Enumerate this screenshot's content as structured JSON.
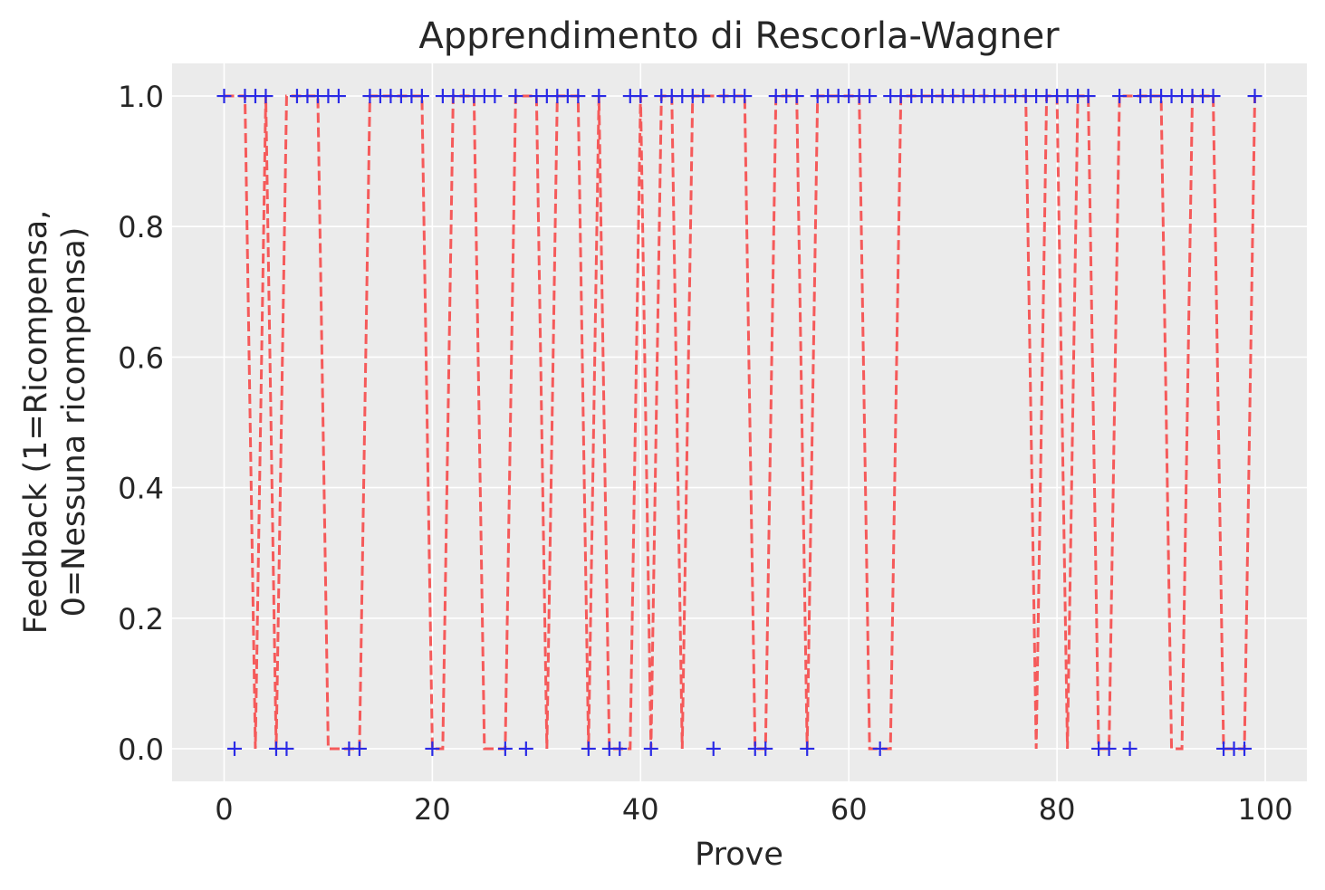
{
  "chart_data": {
    "type": "line",
    "title": "Apprendimento di Rescorla-Wagner",
    "xlabel": "Prove",
    "ylabel_lines": [
      "Feedback (1=Ricompensa,",
      "0=Nessuna ricompensa)"
    ],
    "xlim": [
      -5,
      104
    ],
    "ylim": [
      -0.05,
      1.05
    ],
    "x_ticks": [
      0,
      20,
      40,
      60,
      80,
      100
    ],
    "y_ticks": [
      0.0,
      0.2,
      0.4,
      0.6,
      0.8,
      1.0
    ],
    "x_tick_labels": [
      "0",
      "20",
      "40",
      "60",
      "80",
      "100"
    ],
    "y_tick_labels": [
      "0.0",
      "0.2",
      "0.4",
      "0.6",
      "0.8",
      "1.0"
    ],
    "grid": true,
    "colors": {
      "background": "#ebebeb",
      "grid": "#ffffff",
      "line": "#f55a5a",
      "marker": "#2a2ae6"
    },
    "series": [
      {
        "style": "dashed line",
        "x": [
          0,
          1,
          2,
          3,
          4,
          5,
          6,
          7,
          8,
          9,
          10,
          11,
          12,
          13,
          14,
          15,
          16,
          17,
          18,
          19,
          20,
          21,
          22,
          23,
          24,
          25,
          26,
          27,
          28,
          29,
          30,
          31,
          32,
          33,
          34,
          35,
          36,
          37,
          38,
          39,
          40,
          41,
          42,
          43,
          44,
          45,
          46,
          47,
          48,
          49,
          50,
          51,
          52,
          53,
          54,
          55,
          56,
          57,
          58,
          59,
          60,
          61,
          62,
          63,
          64,
          65,
          66,
          67,
          68,
          69,
          70,
          71,
          72,
          73,
          74,
          75,
          76,
          77,
          78,
          79,
          80,
          81,
          82,
          83,
          84,
          85,
          86,
          87,
          88,
          89,
          90,
          91,
          92,
          93,
          94,
          95,
          96,
          97,
          98,
          99
        ],
        "y": [
          1,
          1,
          1,
          0,
          1,
          0,
          1,
          1,
          1,
          1,
          0,
          0,
          0,
          0,
          1,
          1,
          1,
          1,
          1,
          1,
          0,
          0,
          1,
          1,
          1,
          0,
          0,
          0,
          1,
          1,
          1,
          0,
          1,
          1,
          1,
          0,
          1,
          0,
          0,
          0,
          1,
          0,
          1,
          1,
          0,
          1,
          1,
          1,
          1,
          1,
          1,
          0,
          0,
          1,
          1,
          1,
          0,
          1,
          1,
          1,
          1,
          1,
          0,
          0,
          0,
          1,
          1,
          1,
          1,
          1,
          1,
          1,
          1,
          1,
          1,
          1,
          1,
          1,
          0,
          1,
          1,
          0,
          1,
          1,
          0,
          0,
          1,
          1,
          1,
          1,
          1,
          0,
          0,
          1,
          1,
          1,
          0,
          0,
          0,
          1
        ]
      },
      {
        "style": "plus markers",
        "x": [
          0,
          1,
          2,
          3,
          4,
          5,
          6,
          7,
          8,
          9,
          10,
          11,
          12,
          13,
          14,
          15,
          16,
          17,
          18,
          19,
          20,
          21,
          22,
          23,
          24,
          25,
          26,
          27,
          28,
          29,
          30,
          31,
          32,
          33,
          34,
          35,
          36,
          37,
          38,
          39,
          40,
          41,
          42,
          43,
          44,
          45,
          46,
          47,
          48,
          49,
          50,
          51,
          52,
          53,
          54,
          55,
          56,
          57,
          58,
          59,
          60,
          61,
          62,
          63,
          64,
          65,
          66,
          67,
          68,
          69,
          70,
          71,
          72,
          73,
          74,
          75,
          76,
          77,
          78,
          79,
          80,
          81,
          82,
          83,
          84,
          85,
          86,
          87,
          88,
          89,
          90,
          91,
          92,
          93,
          94,
          95,
          96,
          97,
          98,
          99
        ],
        "y": [
          1,
          0,
          1,
          1,
          1,
          0,
          0,
          1,
          1,
          1,
          1,
          1,
          0,
          0,
          1,
          1,
          1,
          1,
          1,
          1,
          0,
          1,
          1,
          1,
          1,
          1,
          1,
          0,
          1,
          0,
          1,
          1,
          1,
          1,
          1,
          0,
          1,
          0,
          0,
          1,
          1,
          0,
          1,
          1,
          1,
          1,
          1,
          0,
          1,
          1,
          1,
          0,
          0,
          1,
          1,
          1,
          0,
          1,
          1,
          1,
          1,
          1,
          1,
          0,
          1,
          1,
          1,
          1,
          1,
          1,
          1,
          1,
          1,
          1,
          1,
          1,
          1,
          1,
          1,
          1,
          1,
          1,
          1,
          1,
          0,
          0,
          1,
          0,
          1,
          1,
          1,
          1,
          1,
          1,
          1,
          1,
          0,
          0,
          0,
          1
        ]
      }
    ]
  }
}
